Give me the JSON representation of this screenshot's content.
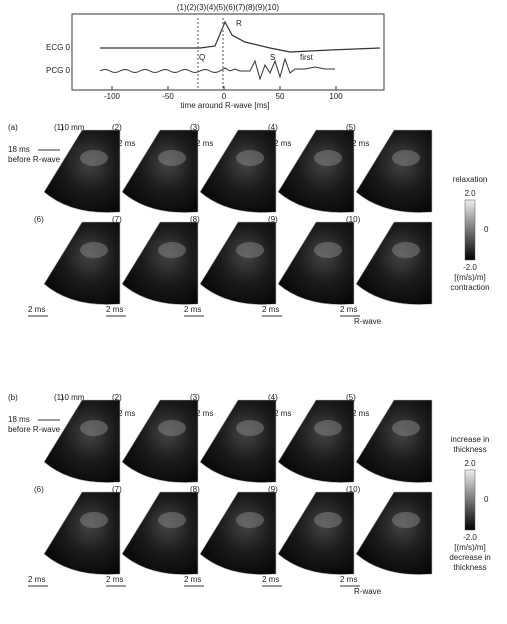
{
  "plot": {
    "frame_numbers": "(1)(2)(3)(4)(5)(6)(7)(8)(9)(10)",
    "signals": [
      "ECG 0",
      "PCG 0"
    ],
    "annotations": [
      "R",
      "Q",
      "S",
      "first"
    ],
    "xticks": [
      -100,
      -50,
      0,
      50,
      100
    ],
    "xlabel": "time around R-wave [ms]"
  },
  "panels": [
    {
      "label": "(a)",
      "scale": "10 mm",
      "offset": [
        "18 ms",
        "before R-wave"
      ],
      "frames": [
        "(1)",
        "(2)",
        "(3)",
        "(4)",
        "(5)",
        "(6)",
        "(7)",
        "(8)",
        "(9)",
        "(10)"
      ],
      "step": "2 ms",
      "end": "R-wave",
      "colorbar": {
        "top": [
          "relaxation"
        ],
        "max": "2.0",
        "mid": "0",
        "min": "-2.0",
        "unit": "[(m/s)/m]",
        "bottom": [
          "contraction"
        ]
      }
    },
    {
      "label": "(b)",
      "scale": "10 mm",
      "offset": [
        "18 ms",
        "before R-wave"
      ],
      "frames": [
        "(1)",
        "(2)",
        "(3)",
        "(4)",
        "(5)",
        "(6)",
        "(7)",
        "(8)",
        "(9)",
        "(10)"
      ],
      "step": "2 ms",
      "end": "R-wave",
      "colorbar": {
        "top": [
          "increase in",
          "thickness"
        ],
        "max": "2.0",
        "mid": "0",
        "min": "-2.0",
        "unit": "[(m/s)/m]",
        "bottom": [
          "decrease in",
          "thickness"
        ]
      }
    }
  ]
}
